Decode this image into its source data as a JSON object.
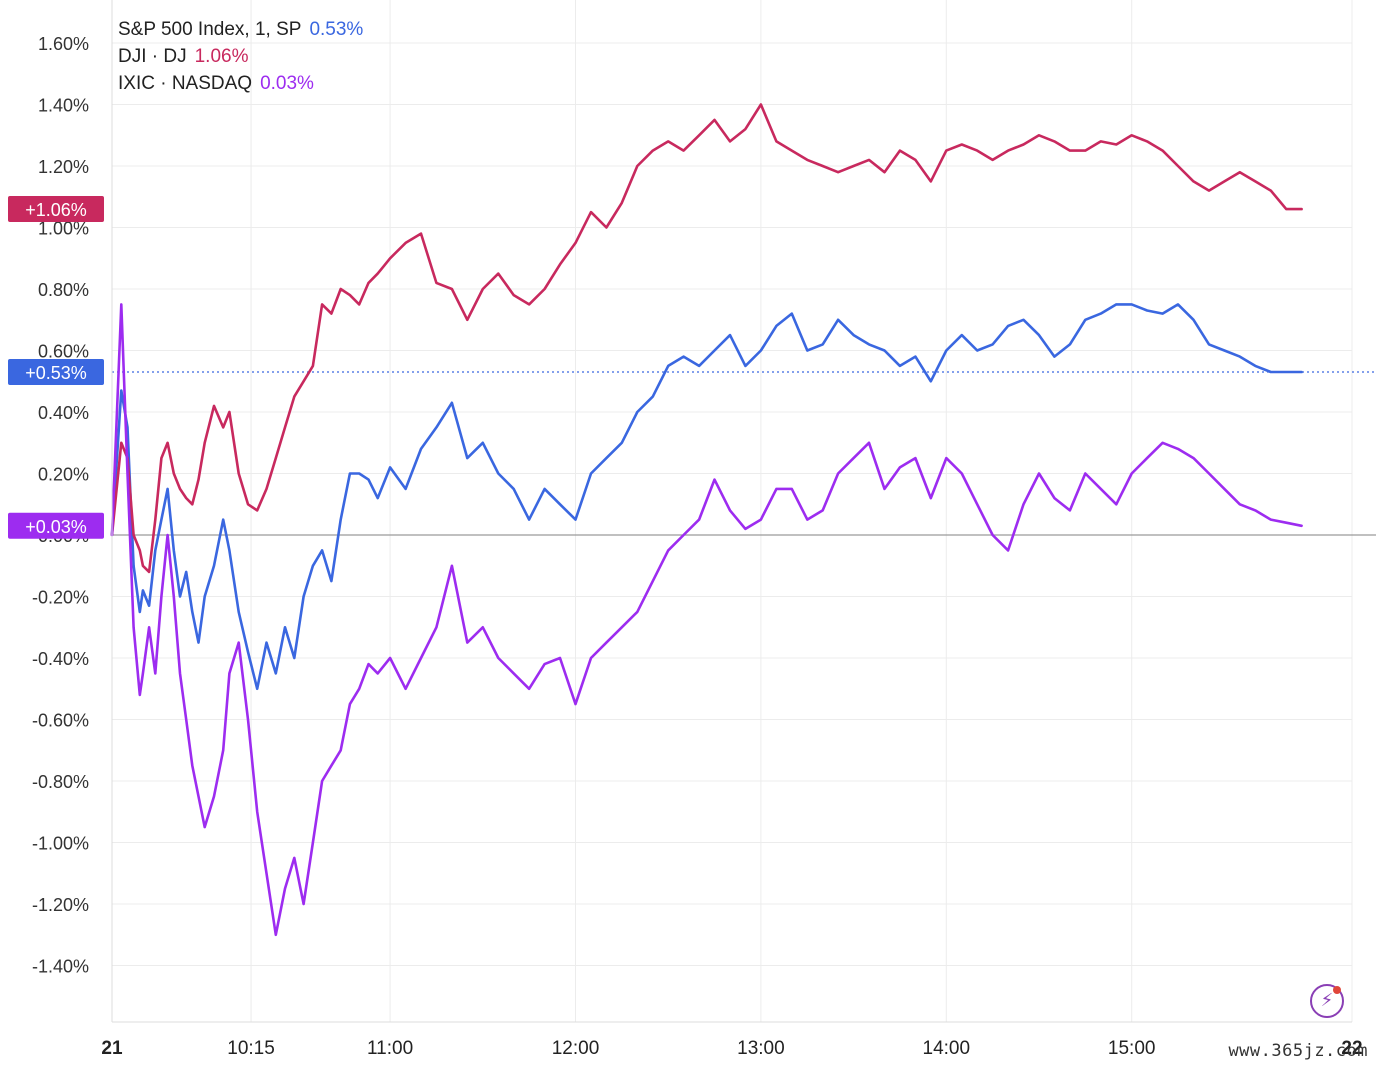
{
  "chart_data": {
    "type": "line",
    "y_unit": "%",
    "ylim": [
      -1.6,
      1.6
    ],
    "y_ticks": [
      "1.60%",
      "1.40%",
      "1.20%",
      "1.00%",
      "0.80%",
      "0.60%",
      "0.40%",
      "0.20%",
      "0.00%",
      "-0.20%",
      "-0.40%",
      "-0.60%",
      "-0.80%",
      "-1.00%",
      "-1.20%",
      "-1.40%"
    ],
    "x_ticks": [
      "21",
      "10:15",
      "11:00",
      "12:00",
      "13:00",
      "14:00",
      "15:00",
      "22"
    ],
    "grid": true,
    "legend_position": "top-left",
    "series": [
      {
        "name": "S&P 500 Index, 1, SP",
        "last_label": "0.53%",
        "badge": "+0.53%",
        "color": "#3a67e0",
        "x": [
          "09:30",
          "09:33",
          "09:35",
          "09:37",
          "09:39",
          "09:40",
          "09:42",
          "09:44",
          "09:46",
          "09:48",
          "09:50",
          "09:52",
          "09:54",
          "09:56",
          "09:58",
          "10:00",
          "10:03",
          "10:06",
          "10:08",
          "10:11",
          "10:14",
          "10:17",
          "10:20",
          "10:23",
          "10:26",
          "10:29",
          "10:32",
          "10:35",
          "10:38",
          "10:41",
          "10:44",
          "10:47",
          "10:50",
          "10:53",
          "10:56",
          "11:00",
          "11:05",
          "11:10",
          "11:15",
          "11:20",
          "11:25",
          "11:30",
          "11:35",
          "11:40",
          "11:45",
          "11:50",
          "11:55",
          "12:00",
          "12:05",
          "12:10",
          "12:15",
          "12:20",
          "12:25",
          "12:30",
          "12:35",
          "12:40",
          "12:45",
          "12:50",
          "12:55",
          "13:00",
          "13:05",
          "13:10",
          "13:15",
          "13:20",
          "13:25",
          "13:30",
          "13:35",
          "13:40",
          "13:45",
          "13:50",
          "13:55",
          "14:00",
          "14:05",
          "14:10",
          "14:15",
          "14:20",
          "14:25",
          "14:30",
          "14:35",
          "14:40",
          "14:45",
          "14:50",
          "14:55",
          "15:00",
          "15:05",
          "15:10",
          "15:15",
          "15:20",
          "15:25",
          "15:30",
          "15:35",
          "15:40",
          "15:45",
          "15:50",
          "15:55"
        ],
        "y": [
          0.0,
          0.47,
          0.35,
          -0.1,
          -0.25,
          -0.18,
          -0.23,
          -0.05,
          0.05,
          0.15,
          -0.05,
          -0.2,
          -0.12,
          -0.25,
          -0.35,
          -0.2,
          -0.1,
          0.05,
          -0.05,
          -0.25,
          -0.38,
          -0.5,
          -0.35,
          -0.45,
          -0.3,
          -0.4,
          -0.2,
          -0.1,
          -0.05,
          -0.15,
          0.05,
          0.2,
          0.2,
          0.18,
          0.12,
          0.22,
          0.15,
          0.28,
          0.35,
          0.43,
          0.25,
          0.3,
          0.2,
          0.15,
          0.05,
          0.15,
          0.1,
          0.05,
          0.2,
          0.25,
          0.3,
          0.4,
          0.45,
          0.55,
          0.58,
          0.55,
          0.6,
          0.65,
          0.55,
          0.6,
          0.68,
          0.72,
          0.6,
          0.62,
          0.7,
          0.65,
          0.62,
          0.6,
          0.55,
          0.58,
          0.5,
          0.6,
          0.65,
          0.6,
          0.62,
          0.68,
          0.7,
          0.65,
          0.58,
          0.62,
          0.7,
          0.72,
          0.75,
          0.75,
          0.73,
          0.72,
          0.75,
          0.7,
          0.62,
          0.6,
          0.58,
          0.55,
          0.53,
          0.53,
          0.53
        ]
      },
      {
        "name": "DJI · DJ",
        "last_label": "1.06%",
        "badge": "+1.06%",
        "color": "#c8295e",
        "x": [
          "09:30",
          "09:33",
          "09:35",
          "09:37",
          "09:39",
          "09:40",
          "09:42",
          "09:44",
          "09:46",
          "09:48",
          "09:50",
          "09:52",
          "09:54",
          "09:56",
          "09:58",
          "10:00",
          "10:03",
          "10:06",
          "10:08",
          "10:11",
          "10:14",
          "10:17",
          "10:20",
          "10:23",
          "10:26",
          "10:29",
          "10:32",
          "10:35",
          "10:38",
          "10:41",
          "10:44",
          "10:47",
          "10:50",
          "10:53",
          "10:56",
          "11:00",
          "11:05",
          "11:10",
          "11:15",
          "11:20",
          "11:25",
          "11:30",
          "11:35",
          "11:40",
          "11:45",
          "11:50",
          "11:55",
          "12:00",
          "12:05",
          "12:10",
          "12:15",
          "12:20",
          "12:25",
          "12:30",
          "12:35",
          "12:40",
          "12:45",
          "12:50",
          "12:55",
          "13:00",
          "13:05",
          "13:10",
          "13:15",
          "13:20",
          "13:25",
          "13:30",
          "13:35",
          "13:40",
          "13:45",
          "13:50",
          "13:55",
          "14:00",
          "14:05",
          "14:10",
          "14:15",
          "14:20",
          "14:25",
          "14:30",
          "14:35",
          "14:40",
          "14:45",
          "14:50",
          "14:55",
          "15:00",
          "15:05",
          "15:10",
          "15:15",
          "15:20",
          "15:25",
          "15:30",
          "15:35",
          "15:40",
          "15:45",
          "15:50",
          "15:55"
        ],
        "y": [
          0.0,
          0.3,
          0.25,
          0.0,
          -0.05,
          -0.1,
          -0.12,
          0.05,
          0.25,
          0.3,
          0.2,
          0.15,
          0.12,
          0.1,
          0.18,
          0.3,
          0.42,
          0.35,
          0.4,
          0.2,
          0.1,
          0.08,
          0.15,
          0.25,
          0.35,
          0.45,
          0.5,
          0.55,
          0.75,
          0.72,
          0.8,
          0.78,
          0.75,
          0.82,
          0.85,
          0.9,
          0.95,
          0.98,
          0.82,
          0.8,
          0.7,
          0.8,
          0.85,
          0.78,
          0.75,
          0.8,
          0.88,
          0.95,
          1.05,
          1.0,
          1.08,
          1.2,
          1.25,
          1.28,
          1.25,
          1.3,
          1.35,
          1.28,
          1.32,
          1.4,
          1.28,
          1.25,
          1.22,
          1.2,
          1.18,
          1.2,
          1.22,
          1.18,
          1.25,
          1.22,
          1.15,
          1.25,
          1.27,
          1.25,
          1.22,
          1.25,
          1.27,
          1.3,
          1.28,
          1.25,
          1.25,
          1.28,
          1.27,
          1.3,
          1.28,
          1.25,
          1.2,
          1.15,
          1.12,
          1.15,
          1.18,
          1.15,
          1.12,
          1.06,
          1.06
        ]
      },
      {
        "name": "IXIC · NASDAQ",
        "last_label": "0.03%",
        "badge": "+0.03%",
        "color": "#9d2cf0",
        "x": [
          "09:30",
          "09:33",
          "09:35",
          "09:37",
          "09:39",
          "09:40",
          "09:42",
          "09:44",
          "09:46",
          "09:48",
          "09:50",
          "09:52",
          "09:54",
          "09:56",
          "09:58",
          "10:00",
          "10:03",
          "10:06",
          "10:08",
          "10:11",
          "10:14",
          "10:17",
          "10:20",
          "10:23",
          "10:26",
          "10:29",
          "10:32",
          "10:35",
          "10:38",
          "10:41",
          "10:44",
          "10:47",
          "10:50",
          "10:53",
          "10:56",
          "11:00",
          "11:05",
          "11:10",
          "11:15",
          "11:20",
          "11:25",
          "11:30",
          "11:35",
          "11:40",
          "11:45",
          "11:50",
          "11:55",
          "12:00",
          "12:05",
          "12:10",
          "12:15",
          "12:20",
          "12:25",
          "12:30",
          "12:35",
          "12:40",
          "12:45",
          "12:50",
          "12:55",
          "13:00",
          "13:05",
          "13:10",
          "13:15",
          "13:20",
          "13:25",
          "13:30",
          "13:35",
          "13:40",
          "13:45",
          "13:50",
          "13:55",
          "14:00",
          "14:05",
          "14:10",
          "14:15",
          "14:20",
          "14:25",
          "14:30",
          "14:35",
          "14:40",
          "14:45",
          "14:50",
          "14:55",
          "15:00",
          "15:05",
          "15:10",
          "15:15",
          "15:20",
          "15:25",
          "15:30",
          "15:35",
          "15:40",
          "15:45",
          "15:50",
          "15:55"
        ],
        "y": [
          0.0,
          0.75,
          0.2,
          -0.3,
          -0.52,
          -0.45,
          -0.3,
          -0.45,
          -0.2,
          0.0,
          -0.2,
          -0.45,
          -0.6,
          -0.75,
          -0.85,
          -0.95,
          -0.85,
          -0.7,
          -0.45,
          -0.35,
          -0.6,
          -0.9,
          -1.1,
          -1.3,
          -1.15,
          -1.05,
          -1.2,
          -1.0,
          -0.8,
          -0.75,
          -0.7,
          -0.55,
          -0.5,
          -0.42,
          -0.45,
          -0.4,
          -0.5,
          -0.4,
          -0.3,
          -0.1,
          -0.35,
          -0.3,
          -0.4,
          -0.45,
          -0.5,
          -0.42,
          -0.4,
          -0.55,
          -0.4,
          -0.35,
          -0.3,
          -0.25,
          -0.15,
          -0.05,
          0.0,
          0.05,
          0.18,
          0.08,
          0.02,
          0.05,
          0.15,
          0.15,
          0.05,
          0.08,
          0.2,
          0.25,
          0.3,
          0.15,
          0.22,
          0.25,
          0.12,
          0.25,
          0.2,
          0.1,
          0.0,
          -0.05,
          0.1,
          0.2,
          0.12,
          0.08,
          0.2,
          0.15,
          0.1,
          0.2,
          0.25,
          0.3,
          0.28,
          0.25,
          0.2,
          0.15,
          0.1,
          0.08,
          0.05,
          0.04,
          0.03
        ]
      }
    ]
  },
  "watermark": "www.365jz.com"
}
